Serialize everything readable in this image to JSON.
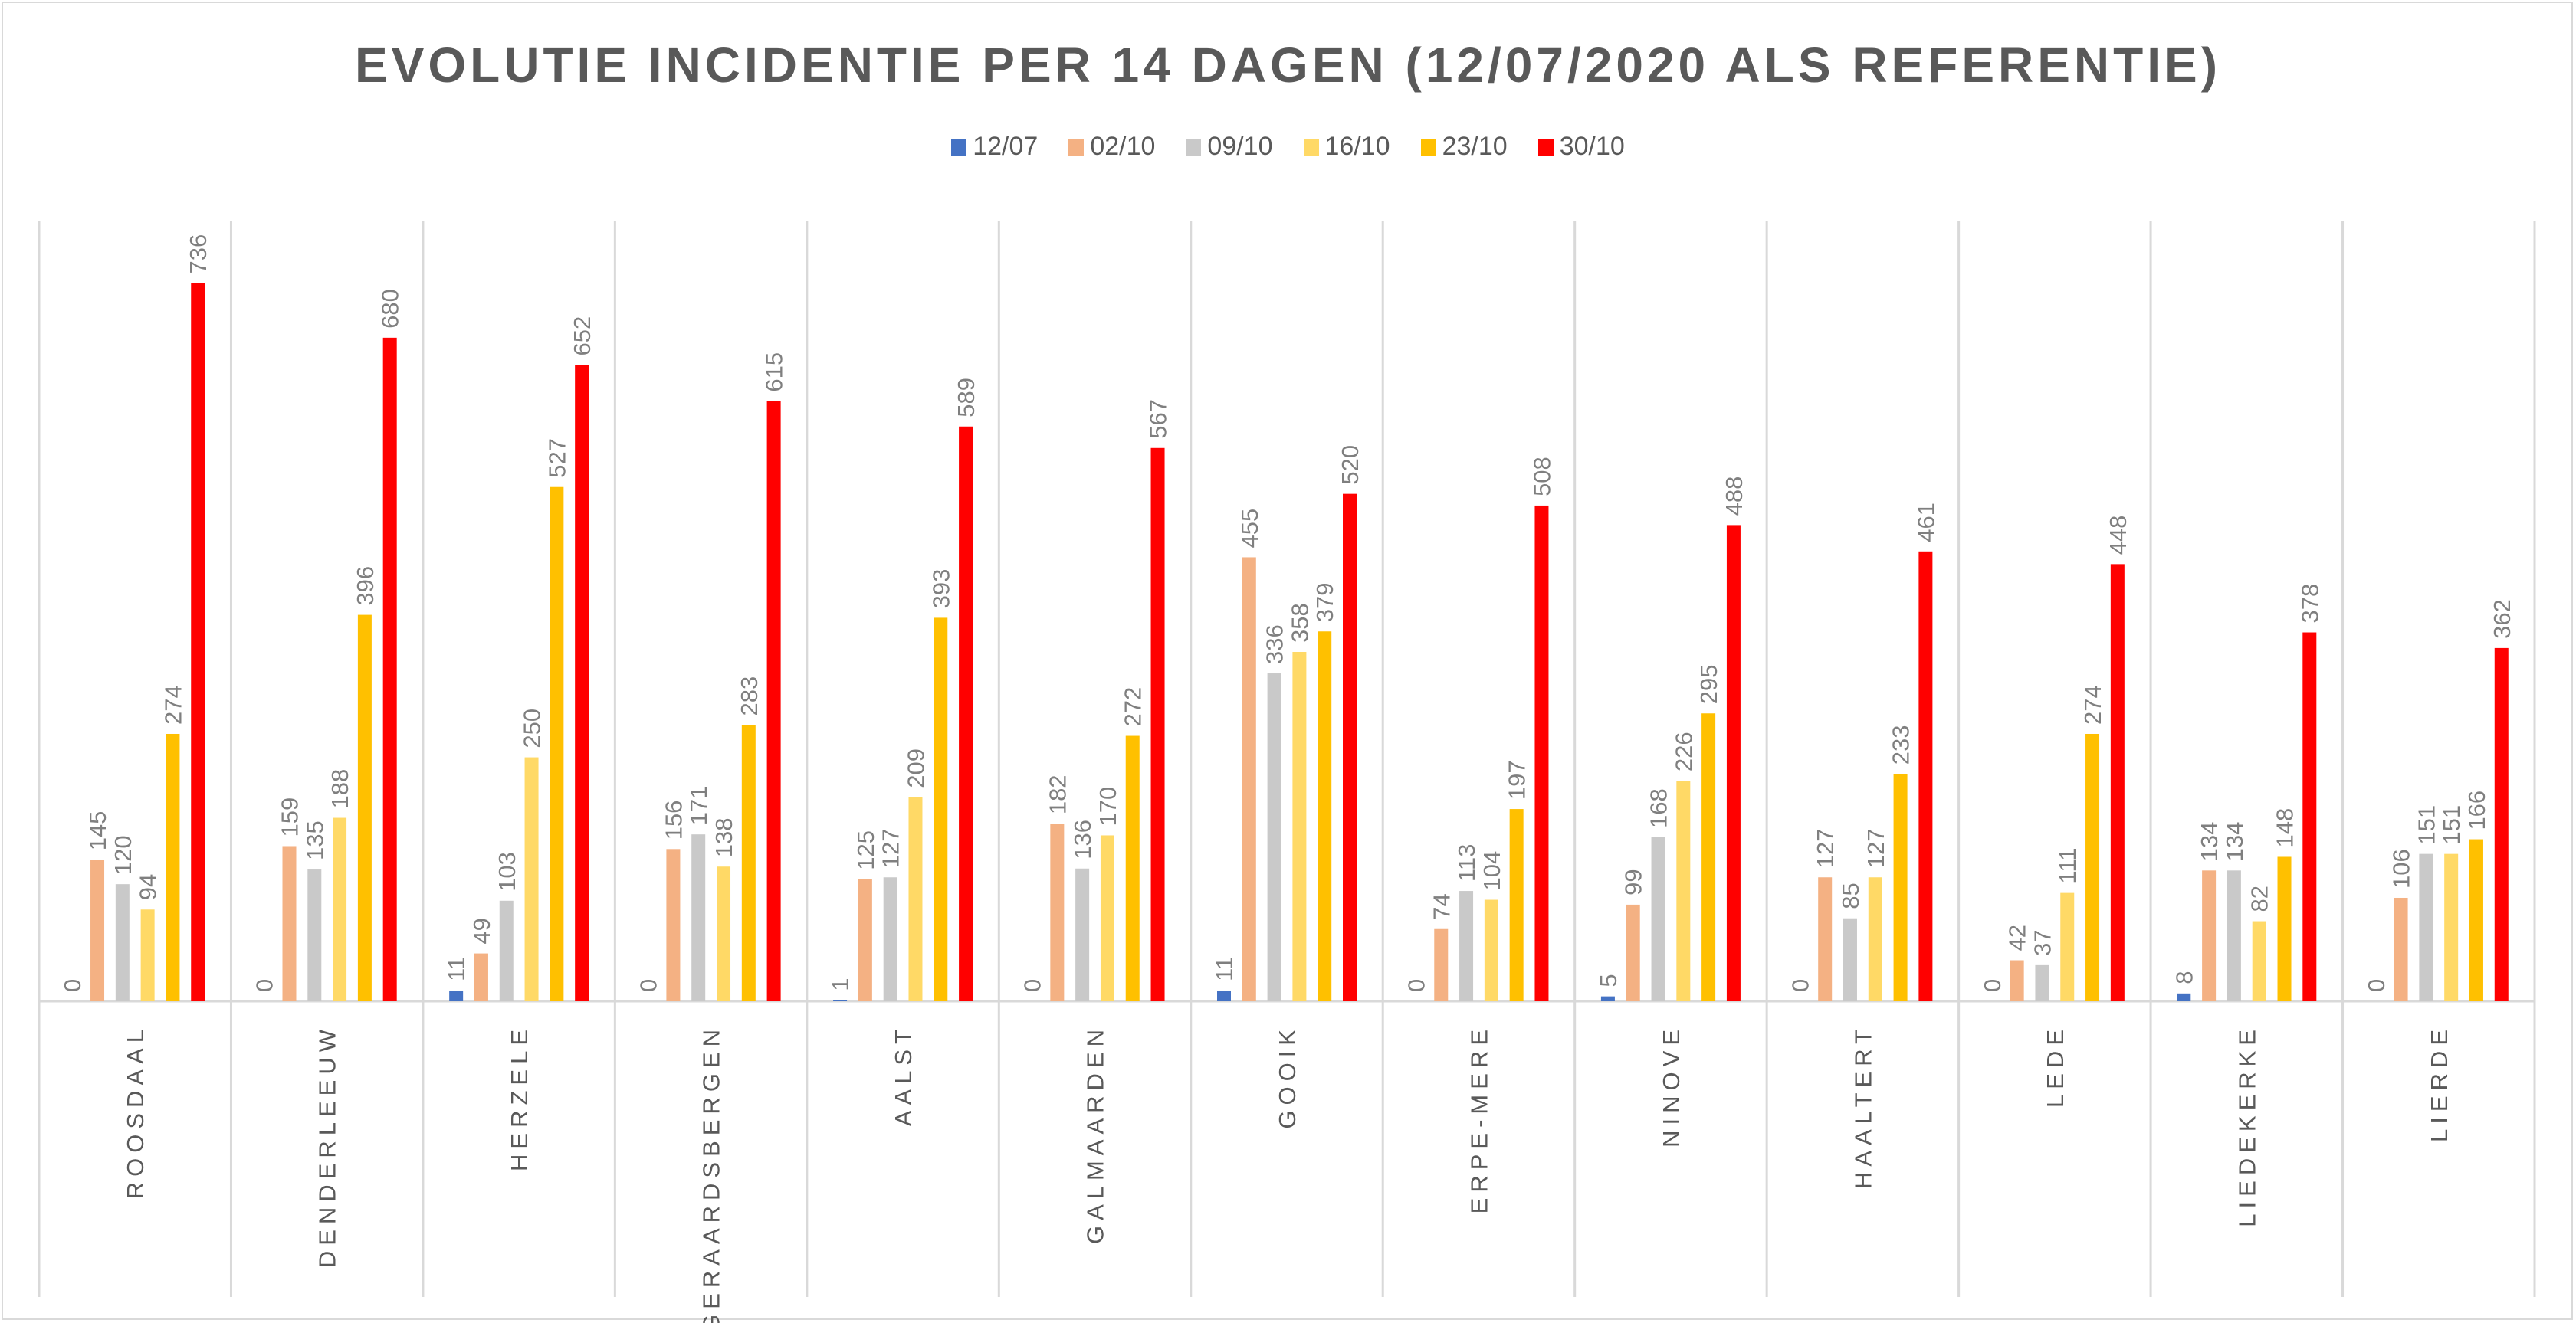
{
  "chart_data": {
    "type": "bar",
    "title": "EVOLUTIE INCIDENTIE PER 14 DAGEN (12/07/2020 ALS REFERENTIE)",
    "xlabel": "",
    "ylabel": "",
    "ylim": [
      0,
      800
    ],
    "grid": false,
    "legend_position": "top",
    "categories": [
      "ROOSDAAL",
      "DENDERLEEUW",
      "HERZELE",
      "GERAARDSBERGEN",
      "AALST",
      "GALMAARDEN",
      "GOOIK",
      "ERPE-MERE",
      "NINOVE",
      "HAALTERT",
      "LEDE",
      "LIEDEKERKE",
      "LIERDE"
    ],
    "series": [
      {
        "name": "12/07",
        "color": "#4472c4",
        "values": [
          0,
          0,
          11,
          0,
          1,
          0,
          11,
          0,
          5,
          0,
          0,
          8,
          0
        ]
      },
      {
        "name": "02/10",
        "color": "#f4b183",
        "values": [
          145,
          159,
          49,
          156,
          125,
          182,
          455,
          74,
          99,
          127,
          42,
          134,
          106
        ]
      },
      {
        "name": "09/10",
        "color": "#c9c9c9",
        "values": [
          120,
          135,
          103,
          171,
          127,
          136,
          336,
          113,
          168,
          85,
          37,
          134,
          151
        ]
      },
      {
        "name": "16/10",
        "color": "#ffd966",
        "values": [
          94,
          188,
          250,
          138,
          209,
          170,
          358,
          104,
          226,
          127,
          111,
          82,
          151
        ]
      },
      {
        "name": "23/10",
        "color": "#ffc000",
        "values": [
          274,
          396,
          527,
          283,
          393,
          272,
          379,
          197,
          295,
          233,
          274,
          148,
          166
        ]
      },
      {
        "name": "30/10",
        "color": "#ff0000",
        "values": [
          736,
          680,
          652,
          615,
          589,
          567,
          520,
          508,
          488,
          461,
          448,
          378,
          362
        ]
      }
    ]
  }
}
